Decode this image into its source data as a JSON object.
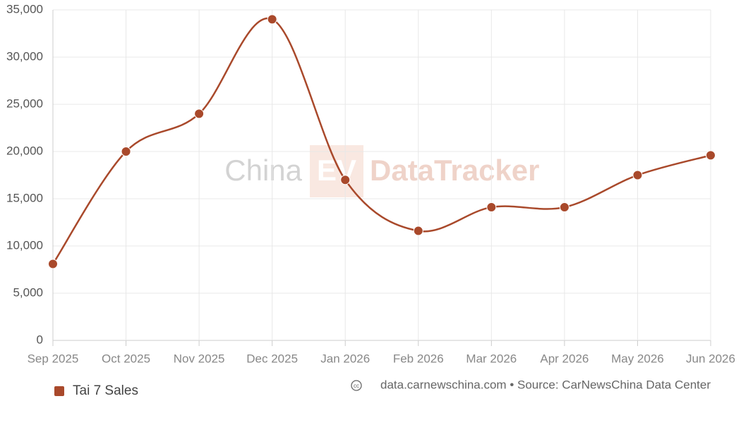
{
  "chart_data": {
    "type": "line",
    "categories": [
      "Sep 2025",
      "Oct 2025",
      "Nov 2025",
      "Dec 2025",
      "Jan 2026",
      "Feb 2026",
      "Mar 2026",
      "Apr 2026",
      "May 2026",
      "Jun 2026"
    ],
    "series": [
      {
        "name": "Tai 7 Sales",
        "color": "#a9492b",
        "values": [
          8100,
          20000,
          24000,
          34000,
          17000,
          11600,
          14100,
          14100,
          17500,
          19600
        ]
      }
    ],
    "ylim": [
      0,
      35000
    ],
    "yticks": [
      0,
      {
        "value": 5000,
        "label": "5,000"
      },
      {
        "value": 10000,
        "label": "10,000"
      },
      {
        "value": 15000,
        "label": "15,000"
      },
      {
        "value": 20000,
        "label": "20,000"
      },
      {
        "value": 25000,
        "label": "25,000"
      },
      {
        "value": 30000,
        "label": "30,000"
      },
      {
        "value": 35000,
        "label": "35,000"
      }
    ],
    "grid": true,
    "smooth": true,
    "watermark": [
      "China",
      "EV",
      "DataTracker"
    ],
    "source": "data.carnewschina.com • Source: CarNewsChina Data Center"
  }
}
